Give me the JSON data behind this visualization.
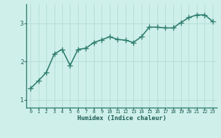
{
  "x": [
    0,
    1,
    2,
    3,
    4,
    5,
    6,
    7,
    8,
    9,
    10,
    11,
    12,
    13,
    14,
    15,
    16,
    17,
    18,
    19,
    20,
    21,
    22,
    23
  ],
  "y": [
    1.3,
    1.5,
    1.72,
    2.2,
    2.32,
    1.9,
    2.32,
    2.35,
    2.5,
    2.57,
    2.65,
    2.58,
    2.56,
    2.5,
    2.65,
    2.9,
    2.9,
    2.88,
    2.88,
    3.02,
    3.15,
    3.22,
    3.22,
    3.05
  ],
  "xlabel": "Humidex (Indice chaleur)",
  "ylim": [
    0.8,
    3.5
  ],
  "xlim": [
    -0.5,
    23.5
  ],
  "yticks": [
    1,
    2,
    3
  ],
  "xticks": [
    0,
    1,
    2,
    3,
    4,
    5,
    6,
    7,
    8,
    9,
    10,
    11,
    12,
    13,
    14,
    15,
    16,
    17,
    18,
    19,
    20,
    21,
    22,
    23
  ],
  "line_color": "#2e7d6e",
  "marker_color": "#2e7d6e",
  "bg_color": "#cff0ea",
  "grid_color": "#b5ddd6",
  "spine_color": "#2e7d6e",
  "tick_label_color": "#1a5c52",
  "xlabel_color": "#1a5c52",
  "line_width": 1.2,
  "marker_size": 3.0
}
